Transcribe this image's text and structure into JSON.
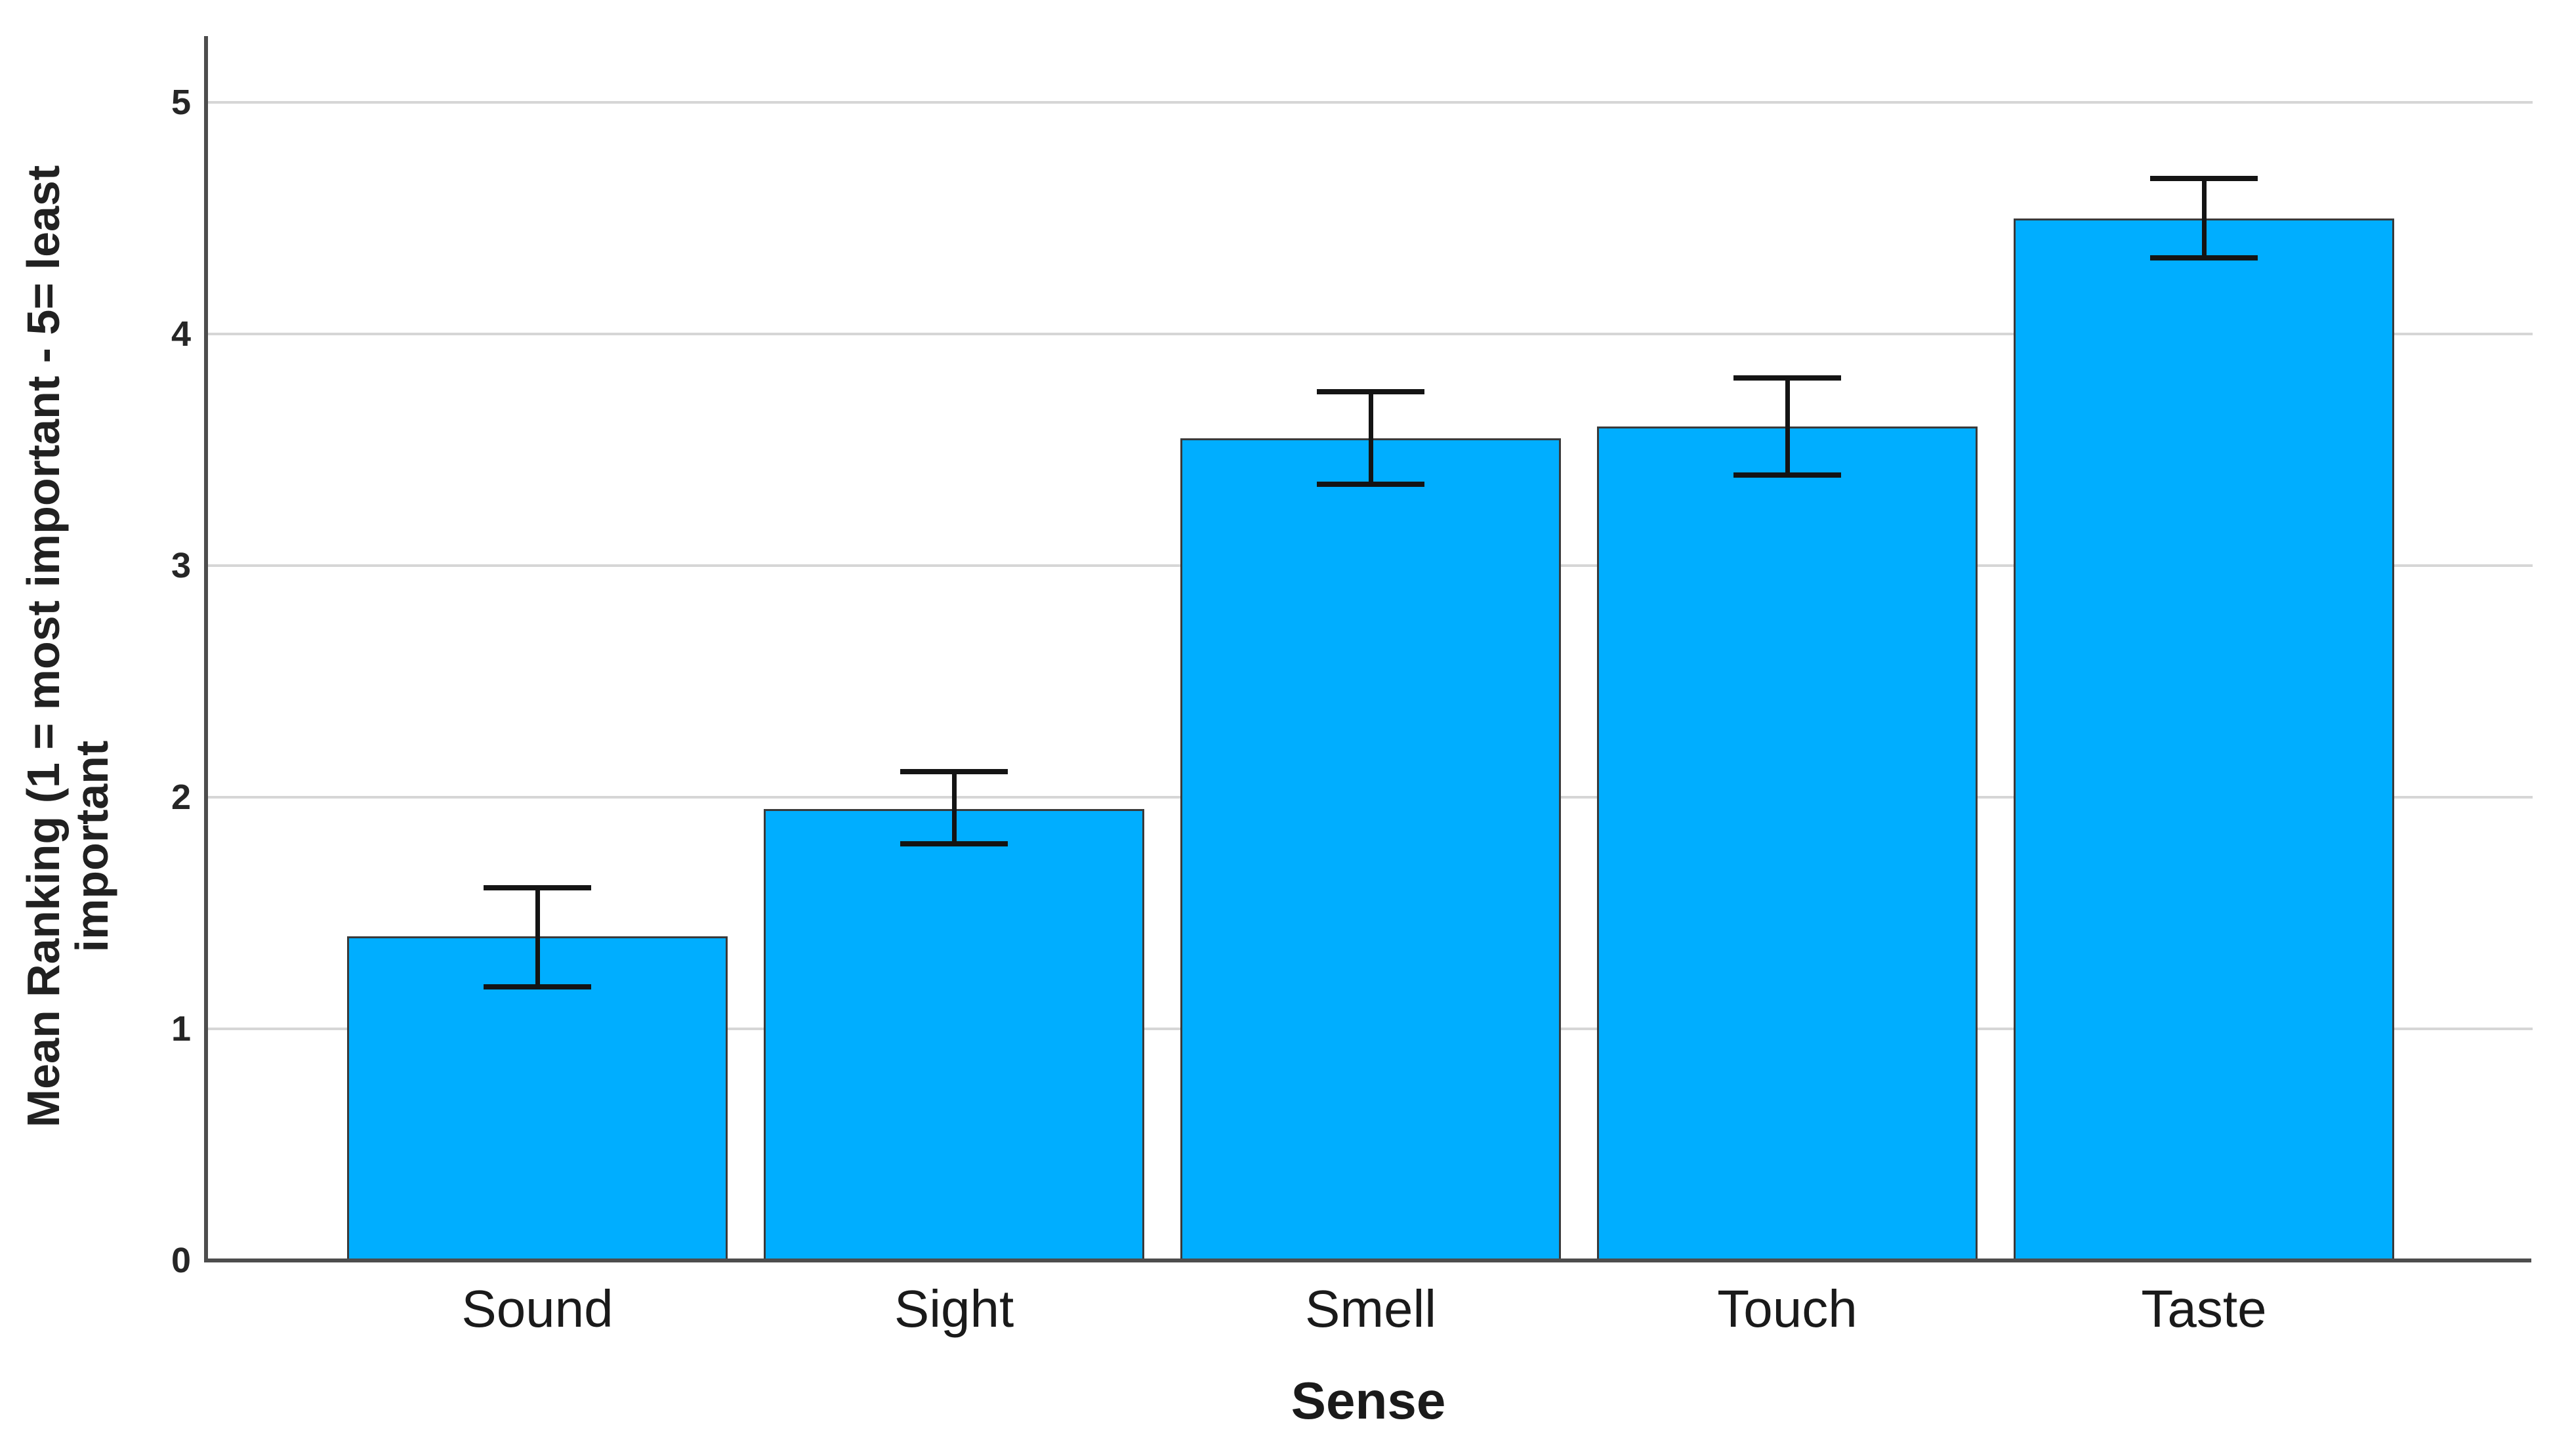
{
  "chart_data": {
    "type": "bar",
    "title": "",
    "categories": [
      "Sound",
      "Sight",
      "Smell",
      "Touch",
      "Taste"
    ],
    "values": [
      1.4,
      1.95,
      3.55,
      3.6,
      4.5
    ],
    "error_low": [
      1.18,
      1.8,
      3.35,
      3.39,
      4.33
    ],
    "error_high": [
      1.61,
      2.11,
      3.75,
      3.81,
      4.67
    ],
    "xlabel": "Sense",
    "ylabel": "Mean Ranking (1 = most important - 5= least important",
    "ylabel_line1": "Mean Ranking (1 = most important - 5= least",
    "ylabel_line2": "important",
    "ylim": [
      0,
      5
    ],
    "yticks": [
      0,
      1,
      2,
      3,
      4,
      5
    ],
    "grid": "horizontal-only",
    "legend": "none",
    "error_bars": "95% CI, capped, both directions",
    "colors": {
      "bar_fill": "#00AEFF",
      "bar_border": "#3A3A3A",
      "error_bar": "#141414",
      "gridline": "#D6D6D6",
      "axis": "#4D4D4D",
      "text": "#212121"
    }
  }
}
